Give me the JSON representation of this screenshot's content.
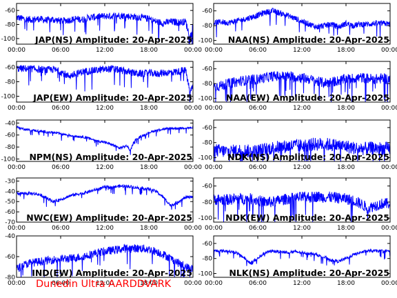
{
  "footer": "Dunedin Ultra AARDDVARK",
  "colors": {
    "trace": "#0000ff",
    "footer": "#ff0000",
    "frame": "#000000"
  },
  "chart_data": [
    {
      "type": "line",
      "title": "JAP(NS) Amplitude: 20-Apr-2025",
      "xticks": [
        "00:00",
        "06:00",
        "12:00",
        "18:00",
        "00:00"
      ],
      "xlim": [
        0,
        24
      ],
      "yticks": [
        -60,
        -80,
        -100
      ],
      "ylim": [
        -108,
        -50
      ],
      "series": [
        {
          "x": [
            0,
            1,
            2,
            3,
            4,
            5,
            6,
            7,
            8,
            9,
            10,
            11,
            12,
            13,
            14,
            15,
            16,
            17,
            18,
            19,
            20,
            21,
            22,
            23,
            23.6,
            24
          ],
          "values": [
            -70,
            -72,
            -73,
            -72,
            -74,
            -73,
            -75,
            -74,
            -72,
            -73,
            -70,
            -69,
            -68,
            -68,
            -67,
            -68,
            -69,
            -70,
            -72,
            -76,
            -78,
            -76,
            -77,
            -76,
            -99,
            -80
          ],
          "spread": 5
        }
      ]
    },
    {
      "type": "line",
      "title": "NAA(NS) Amplitude: 20-Apr-2025",
      "xticks": [
        "00:00",
        "06:00",
        "12:00",
        "18:00",
        "00:00"
      ],
      "xlim": [
        0,
        24
      ],
      "yticks": [
        -60,
        -80,
        -100
      ],
      "ylim": [
        -105,
        -50
      ],
      "series": [
        {
          "x": [
            0,
            1,
            2,
            3,
            4,
            5,
            6,
            7,
            8,
            9,
            10,
            11,
            12,
            13,
            14,
            15,
            16,
            17,
            18,
            19,
            20,
            21,
            22,
            23,
            24
          ],
          "values": [
            -76,
            -75,
            -76,
            -74,
            -72,
            -69,
            -66,
            -62,
            -60,
            -63,
            -66,
            -70,
            -74,
            -78,
            -82,
            -80,
            -78,
            -82,
            -77,
            -80,
            -78,
            -78,
            -77,
            -77,
            -78
          ],
          "spread": 4
        }
      ]
    },
    {
      "type": "line",
      "title": "JAP(EW) Amplitude: 20-Apr-2025",
      "xticks": [
        "00:00",
        "06:00",
        "12:00",
        "18:00",
        "00:00"
      ],
      "xlim": [
        0,
        24
      ],
      "yticks": [
        -60,
        -80,
        -100
      ],
      "ylim": [
        -108,
        -52
      ],
      "series": [
        {
          "x": [
            0,
            1,
            2,
            3,
            4,
            5,
            6,
            7,
            8,
            9,
            10,
            11,
            12,
            13,
            14,
            15,
            16,
            17,
            18,
            19,
            20,
            21,
            22,
            23,
            23.6,
            24
          ],
          "values": [
            -62,
            -62,
            -62,
            -63,
            -64,
            -63,
            -66,
            -72,
            -70,
            -66,
            -65,
            -64,
            -63,
            -62,
            -64,
            -66,
            -68,
            -69,
            -68,
            -69,
            -68,
            -67,
            -66,
            -64,
            -95,
            -85
          ],
          "spread": 5
        }
      ]
    },
    {
      "type": "line",
      "title": "NAA(EW) Amplitude: 20-Apr-2025",
      "xticks": [
        "00:00",
        "06:00",
        "12:00",
        "18:00",
        "00:00"
      ],
      "xlim": [
        0,
        24
      ],
      "yticks": [
        -60,
        -80,
        -100
      ],
      "ylim": [
        -105,
        -50
      ],
      "series": [
        {
          "x": [
            0,
            1,
            2,
            3,
            4,
            5,
            6,
            7,
            8,
            9,
            10,
            11,
            12,
            13,
            14,
            15,
            16,
            17,
            18,
            19,
            20,
            21,
            22,
            23,
            24
          ],
          "values": [
            -84,
            -83,
            -80,
            -78,
            -76,
            -75,
            -74,
            -72,
            -70,
            -70,
            -70,
            -71,
            -72,
            -74,
            -77,
            -79,
            -78,
            -76,
            -74,
            -73,
            -72,
            -73,
            -74,
            -73,
            -74
          ],
          "spread": 7
        }
      ]
    },
    {
      "type": "line",
      "title": "NPM(NS) Amplitude: 20-Apr-2025",
      "xticks": [
        "00:00",
        "06:00",
        "12:00",
        "18:00",
        "00:00"
      ],
      "xlim": [
        0,
        24
      ],
      "yticks": [
        -40,
        -60,
        -80,
        -100
      ],
      "ylim": [
        -104,
        -35
      ],
      "series": [
        {
          "x": [
            0,
            1,
            2,
            3,
            4,
            5,
            6,
            7,
            8,
            9,
            10,
            11,
            12,
            13,
            14,
            15,
            15.5,
            16,
            17,
            18,
            19,
            20,
            21,
            22,
            23,
            24
          ],
          "values": [
            -47,
            -50,
            -52,
            -53,
            -55,
            -56,
            -58,
            -60,
            -62,
            -63,
            -66,
            -70,
            -72,
            -76,
            -82,
            -78,
            -86,
            -70,
            -62,
            -56,
            -52,
            -50,
            -49,
            -49,
            -48,
            -48
          ],
          "spread": 2
        }
      ]
    },
    {
      "type": "line",
      "title": "NDK(NS) Amplitude: 20-Apr-2025",
      "xticks": [
        "00:00",
        "06:00",
        "12:00",
        "18:00",
        "00:00"
      ],
      "xlim": [
        0,
        24
      ],
      "yticks": [
        -60,
        -80,
        -100
      ],
      "ylim": [
        -105,
        -50
      ],
      "series": [
        {
          "x": [
            0,
            1,
            2,
            3,
            4,
            5,
            6,
            7,
            8,
            9,
            10,
            11,
            12,
            13,
            14,
            15,
            16,
            17,
            18,
            19,
            20,
            21,
            22,
            23,
            24
          ],
          "values": [
            -90,
            -91,
            -92,
            -91,
            -90,
            -92,
            -91,
            -89,
            -87,
            -86,
            -85,
            -84,
            -84,
            -83,
            -82,
            -82,
            -83,
            -84,
            -85,
            -87,
            -88,
            -88,
            -87,
            -88,
            -88
          ],
          "spread": 9
        }
      ]
    },
    {
      "type": "line",
      "title": "NWC(EW) Amplitude: 20-Apr-2025",
      "xticks": [
        "00:00",
        "06:00",
        "12:00",
        "18:00",
        "00:00"
      ],
      "xlim": [
        0,
        24
      ],
      "yticks": [
        -30,
        -40,
        -50,
        -60,
        -70
      ],
      "ylim": [
        -70,
        -27
      ],
      "series": [
        {
          "x": [
            0,
            1,
            2,
            3,
            4,
            5,
            6,
            7,
            8,
            9,
            10,
            11,
            12,
            13,
            14,
            15,
            16,
            17,
            18,
            19,
            20,
            21,
            22,
            23,
            24
          ],
          "values": [
            -42,
            -42,
            -42,
            -43,
            -46,
            -50,
            -48,
            -45,
            -43,
            -42,
            -40,
            -38,
            -36,
            -36,
            -35,
            -35,
            -36,
            -37,
            -38,
            -40,
            -46,
            -54,
            -50,
            -46,
            -45
          ],
          "spread": 1.5
        }
      ]
    },
    {
      "type": "line",
      "title": "NDK(EW) Amplitude: 20-Apr-2025",
      "xticks": [
        "00:00",
        "06:00",
        "12:00",
        "18:00",
        "00:00"
      ],
      "xlim": [
        0,
        24
      ],
      "yticks": [
        -60,
        -80,
        -100
      ],
      "ylim": [
        -105,
        -50
      ],
      "series": [
        {
          "x": [
            0,
            1,
            2,
            3,
            4,
            5,
            6,
            7,
            8,
            9,
            10,
            11,
            12,
            13,
            14,
            15,
            16,
            17,
            18,
            19,
            20,
            21,
            22,
            23,
            24
          ],
          "values": [
            -77,
            -77,
            -77,
            -76,
            -76,
            -76,
            -78,
            -80,
            -80,
            -78,
            -76,
            -75,
            -74,
            -74,
            -73,
            -74,
            -74,
            -75,
            -76,
            -78,
            -82,
            -88,
            -84,
            -82,
            -82
          ],
          "spread": 7
        }
      ]
    },
    {
      "type": "line",
      "title": "IND(EW) Amplitude: 20-Apr-2025",
      "xticks": [
        "00:00",
        "06:00",
        "12:00",
        "18:00",
        "00:00"
      ],
      "xlim": [
        0,
        24
      ],
      "yticks": [
        -40,
        -60,
        -80
      ],
      "ylim": [
        -80,
        -40
      ],
      "series": [
        {
          "x": [
            0,
            1,
            2,
            3,
            4,
            5,
            6,
            7,
            8,
            9,
            10,
            11,
            12,
            13,
            14,
            15,
            16,
            17,
            18,
            19,
            20,
            21,
            22,
            23,
            24
          ],
          "values": [
            -72,
            -68,
            -66,
            -65,
            -64,
            -63,
            -62,
            -62,
            -61,
            -60,
            -58,
            -56,
            -55,
            -54,
            -53,
            -52,
            -52,
            -52,
            -53,
            -55,
            -58,
            -62,
            -66,
            -70,
            -72
          ],
          "spread": 4
        }
      ]
    },
    {
      "type": "line",
      "title": "NLK(NS) Amplitude: 20-Apr-2025",
      "xticks": [
        "00:00",
        "06:00",
        "12:00",
        "18:00",
        "00:00"
      ],
      "xlim": [
        0,
        24
      ],
      "yticks": [
        -60,
        -80,
        -100
      ],
      "ylim": [
        -105,
        -50
      ],
      "series": [
        {
          "x": [
            0,
            1,
            2,
            3,
            4,
            5,
            6,
            7,
            8,
            9,
            10,
            11,
            12,
            13,
            14,
            15,
            16,
            17,
            18,
            19,
            20,
            21,
            22,
            23,
            24
          ],
          "values": [
            -70,
            -70,
            -70,
            -72,
            -78,
            -86,
            -80,
            -72,
            -70,
            -71,
            -72,
            -71,
            -72,
            -73,
            -75,
            -78,
            -82,
            -84,
            -80,
            -75,
            -72,
            -70,
            -70,
            -70,
            -70
          ],
          "spread": 2
        }
      ]
    }
  ]
}
